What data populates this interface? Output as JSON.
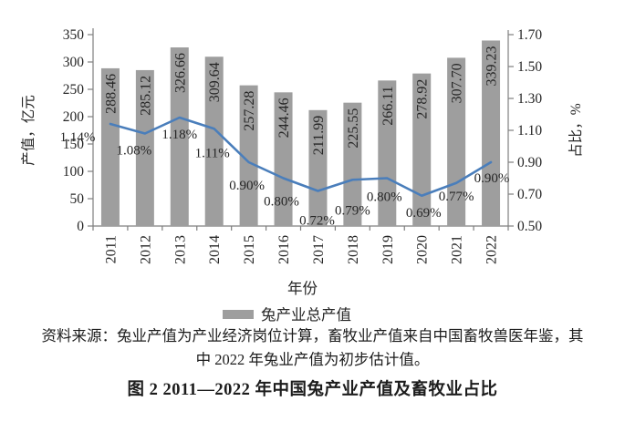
{
  "chart_data": {
    "type": "combo-bar-line",
    "categories": [
      "2011",
      "2012",
      "2013",
      "2014",
      "2015",
      "2016",
      "2017",
      "2018",
      "2019",
      "2020",
      "2021",
      "2022"
    ],
    "series": [
      {
        "name": "兔产业总产值",
        "type": "bar",
        "axis": "left",
        "values": [
          288.46,
          285.12,
          326.66,
          309.64,
          257.28,
          244.46,
          211.99,
          225.55,
          266.11,
          278.92,
          307.7,
          339.23
        ],
        "labels": [
          "288.46",
          "285.12",
          "326.66",
          "309.64",
          "257.28",
          "244.46",
          "211.99",
          "225.55",
          "266.11",
          "278.92",
          "307.70",
          "339.23"
        ],
        "color": "#9e9e9e"
      },
      {
        "name": "占比",
        "type": "line",
        "axis": "right",
        "values": [
          1.14,
          1.08,
          1.18,
          1.11,
          0.9,
          0.8,
          0.72,
          0.79,
          0.8,
          0.69,
          0.77,
          0.9
        ],
        "labels": [
          "1.14%",
          "1.08%",
          "1.18%",
          "1.11%",
          "0.90%",
          "0.80%",
          "0.72%",
          "0.79%",
          "0.80%",
          "0.69%",
          "0.77%",
          "0.90%"
        ],
        "color": "#4a7ebb"
      }
    ],
    "left_axis": {
      "title": "产值，亿元",
      "min": 0,
      "max": 350,
      "step": 50,
      "tick_labels": [
        "0",
        "50",
        "100",
        "150",
        "200",
        "250",
        "300",
        "350"
      ]
    },
    "right_axis": {
      "title": "占比，%",
      "min": 0.5,
      "max": 1.7,
      "step": 0.2,
      "tick_labels": [
        "0.50",
        "0.70",
        "0.90",
        "1.10",
        "1.30",
        "1.50",
        "1.70"
      ]
    },
    "xlabel": "年份",
    "legend": [
      {
        "label": "兔产业总产值",
        "color": "#9e9e9e"
      }
    ],
    "legend_position": "bottom",
    "grid": false
  },
  "caption": {
    "source_line1": "资料来源：兔业产值为产业经济岗位计算，畜牧业产值来自中国畜牧兽医年鉴，其",
    "source_line2": "中 2022 年兔业产值为初步估计值。",
    "figure_title": "图 2 2011—2022 年中国兔产业产值及畜牧业占比"
  },
  "colors": {
    "bar": "#9e9e9e",
    "line": "#4a7ebb",
    "text": "#262626",
    "axis": "#7f7f7f"
  }
}
